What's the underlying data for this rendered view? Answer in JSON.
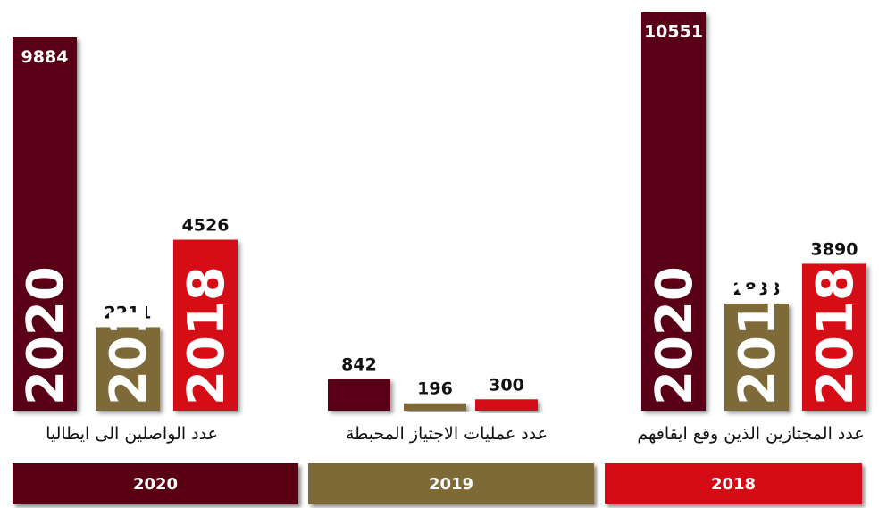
{
  "colors": {
    "y2020": "#5a0013",
    "y2019": "#7d6a37",
    "y2018": "#d40b14"
  },
  "legend": [
    {
      "label": "2020",
      "color": "#5a0013"
    },
    {
      "label": "2019",
      "color": "#7d6a37"
    },
    {
      "label": "2018",
      "color": "#d40b14"
    }
  ],
  "chart_data": {
    "type": "bar",
    "title": "",
    "xlabel": "",
    "ylabel": "",
    "groups": [
      {
        "label": "عدد الواصلين الى ايطاليا",
        "bars": [
          {
            "year": "2020",
            "value": 9884
          },
          {
            "year": "2019",
            "value": 2211
          },
          {
            "year": "2018",
            "value": 4526
          }
        ]
      },
      {
        "label": "عدد عمليات الاجتياز المحبطة",
        "bars": [
          {
            "year": "2020",
            "value": 842
          },
          {
            "year": "2019",
            "value": 196
          },
          {
            "year": "2018",
            "value": 300
          }
        ]
      },
      {
        "label": "عدد المجتازين الذين وقع ايقافهم",
        "bars": [
          {
            "year": "2020",
            "value": 10551
          },
          {
            "year": "2019",
            "value": 2838
          },
          {
            "year": "2018",
            "value": 3890
          }
        ]
      }
    ]
  }
}
